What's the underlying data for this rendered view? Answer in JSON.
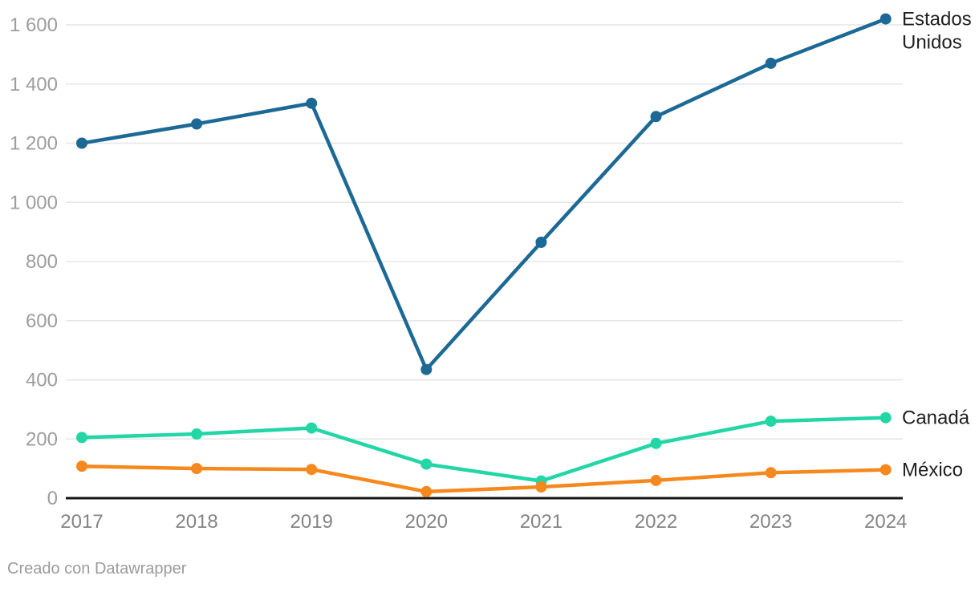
{
  "chart_data": {
    "type": "line",
    "categories": [
      "2017",
      "2018",
      "2019",
      "2020",
      "2021",
      "2022",
      "2023",
      "2024"
    ],
    "series": [
      {
        "name": "Estados Unidos",
        "label_lines": [
          "Estados",
          "Unidos"
        ],
        "color": "#1d6996",
        "values": [
          1200,
          1265,
          1335,
          435,
          865,
          1290,
          1470,
          1620
        ]
      },
      {
        "name": "Canadá",
        "label_lines": [
          "Canadá"
        ],
        "color": "#22d6a5",
        "values": [
          205,
          217,
          237,
          115,
          58,
          185,
          260,
          272
        ]
      },
      {
        "name": "México",
        "label_lines": [
          "México"
        ],
        "color": "#f6891e",
        "values": [
          108,
          100,
          97,
          22,
          38,
          60,
          86,
          96
        ]
      }
    ],
    "title": "",
    "xlabel": "",
    "ylabel": "",
    "ylim": [
      0,
      1600
    ],
    "yticks": [
      {
        "value": 0,
        "label": "0"
      },
      {
        "value": 200,
        "label": "200"
      },
      {
        "value": 400,
        "label": "400"
      },
      {
        "value": 600,
        "label": "600"
      },
      {
        "value": 800,
        "label": "800"
      },
      {
        "value": 1000,
        "label": "1 000"
      },
      {
        "value": 1200,
        "label": "1 200"
      },
      {
        "value": 1400,
        "label": "1 400"
      },
      {
        "value": 1600,
        "label": "1 600"
      }
    ],
    "grid": true,
    "legend_position": "right-of-line-ends",
    "colors": {
      "gridline": "#e6e6e6",
      "axis_line": "#151515",
      "y_tick_text": "#9d9d9d",
      "x_tick_text": "#848484",
      "series_label_text": "#1f1f1f"
    }
  },
  "footer": {
    "attribution": "Creado con Datawrapper"
  }
}
